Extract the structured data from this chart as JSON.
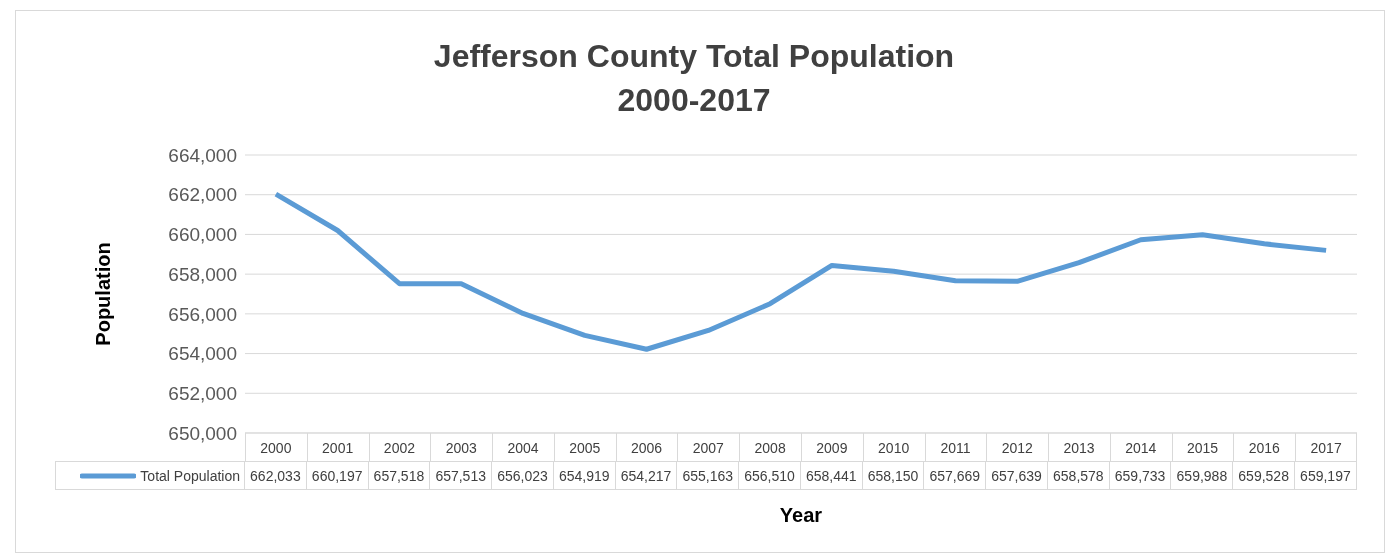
{
  "chart_data": {
    "type": "line",
    "title": "Jefferson County Total Population",
    "subtitle": "2000-2017",
    "xlabel": "Year",
    "ylabel": "Population",
    "categories": [
      "2000",
      "2001",
      "2002",
      "2003",
      "2004",
      "2005",
      "2006",
      "2007",
      "2008",
      "2009",
      "2010",
      "2011",
      "2012",
      "2013",
      "2014",
      "2015",
      "2016",
      "2017"
    ],
    "series": [
      {
        "name": "Total Population",
        "color": "#5b9bd5",
        "values": [
          662033,
          660197,
          657518,
          657513,
          656023,
          654919,
          654217,
          655163,
          656510,
          658441,
          658150,
          657669,
          657639,
          658578,
          659733,
          659988,
          659528,
          659197
        ],
        "value_labels": [
          "662,033",
          "660,197",
          "657,518",
          "657,513",
          "656,023",
          "654,919",
          "654,217",
          "655,163",
          "656,510",
          "658,441",
          "658,150",
          "657,669",
          "657,639",
          "658,578",
          "659,733",
          "659,988",
          "659,528",
          "659,197"
        ]
      }
    ],
    "ylim": [
      650000,
      664000
    ],
    "yticks": [
      {
        "value": 650000,
        "label": "650,000"
      },
      {
        "value": 652000,
        "label": "652,000"
      },
      {
        "value": 654000,
        "label": "654,000"
      },
      {
        "value": 656000,
        "label": "656,000"
      },
      {
        "value": 658000,
        "label": "658,000"
      },
      {
        "value": 660000,
        "label": "660,000"
      },
      {
        "value": 662000,
        "label": "662,000"
      },
      {
        "value": 664000,
        "label": "664,000"
      }
    ],
    "grid": "y",
    "legend": "bottom",
    "marker": "none"
  }
}
